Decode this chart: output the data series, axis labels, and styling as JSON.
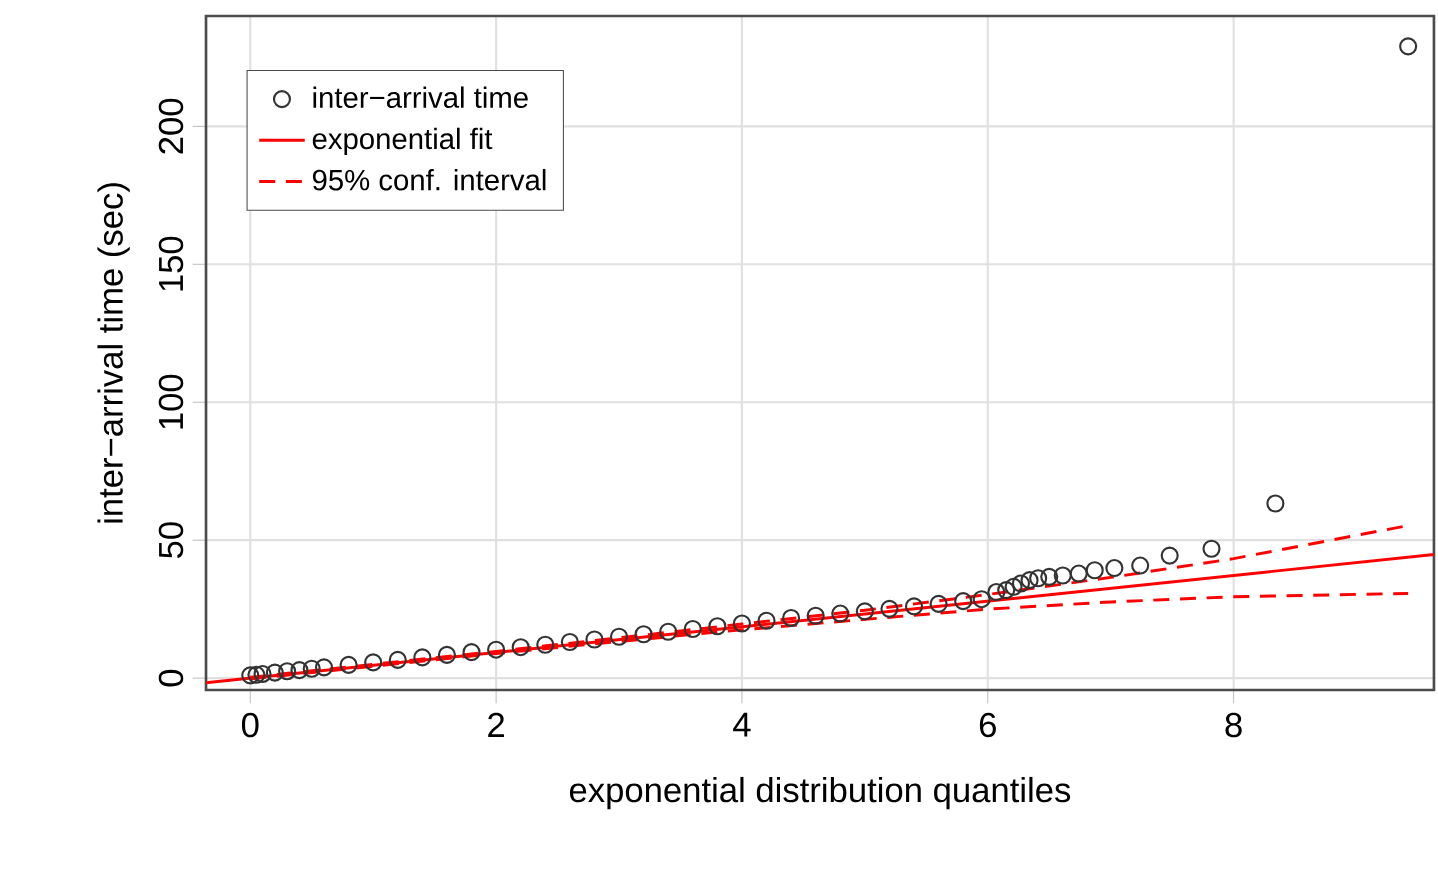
{
  "chart_data": {
    "type": "scatter",
    "xlabel": "exponential distribution quantiles",
    "ylabel": "inter−arrival time (sec)",
    "xlim": [
      -0.36,
      9.63
    ],
    "ylim": [
      -4.3,
      240
    ],
    "xticks": [
      0,
      2,
      4,
      6,
      8
    ],
    "yticks": [
      0,
      50,
      100,
      150,
      200
    ],
    "grid": true,
    "legend": "top left",
    "series": [
      {
        "name": "inter−arrival time",
        "marker": "circle",
        "color": "#333333",
        "x": [
          0,
          0.05,
          0.1,
          0.2,
          0.3,
          0.4,
          0.5,
          0.6,
          0.8,
          1.0,
          1.2,
          1.4,
          1.6,
          1.8,
          2.0,
          2.2,
          2.4,
          2.6,
          2.8,
          3.0,
          3.2,
          3.4,
          3.6,
          3.8,
          4.0,
          4.2,
          4.4,
          4.6,
          4.8,
          5.0,
          5.2,
          5.4,
          5.6,
          5.8,
          5.95,
          6.07,
          6.15,
          6.21,
          6.27,
          6.34,
          6.41,
          6.5,
          6.61,
          6.74,
          6.87,
          7.03,
          7.24,
          7.48,
          7.82,
          8.34,
          9.42
        ],
        "values": [
          1.0,
          1.2,
          1.5,
          2.0,
          2.5,
          2.9,
          3.4,
          3.9,
          4.8,
          5.7,
          6.6,
          7.5,
          8.4,
          9.4,
          10.3,
          11.2,
          12.1,
          13.1,
          14.0,
          15.0,
          15.9,
          16.8,
          17.8,
          18.8,
          19.8,
          20.8,
          21.8,
          22.6,
          23.4,
          24.2,
          25.1,
          26.0,
          26.9,
          27.9,
          28.6,
          31.2,
          31.9,
          33.1,
          34.3,
          35.5,
          36.2,
          36.7,
          37.2,
          37.9,
          39.1,
          39.9,
          40.8,
          44.4,
          46.9,
          63.3,
          229
        ]
      },
      {
        "name": "exponential fit",
        "type": "line",
        "line_style": "solid",
        "color": "#ff0000",
        "x": [
          -0.36,
          9.63
        ],
        "values": [
          -1.7,
          44.8
        ]
      },
      {
        "name": "95% conf. interval",
        "type": "line",
        "line_style": "dashed",
        "color": "#ff0000",
        "x": [
          0,
          1,
          2,
          3,
          4,
          5,
          6,
          7,
          8,
          9.42
        ],
        "values": [
          0.3,
          5,
          9.7,
          14.6,
          19.6,
          24.6,
          30.3,
          36.5,
          43.3,
          55.3
        ]
      },
      {
        "type": "line",
        "line_style": "dashed",
        "color": "#ff0000",
        "x": [
          0,
          1,
          2,
          3,
          4,
          5,
          6,
          7,
          8,
          9.42
        ],
        "values": [
          -0.3,
          4.3,
          8.9,
          13.3,
          17.5,
          21.3,
          25.0,
          27.6,
          29.5,
          30.7
        ]
      }
    ]
  }
}
